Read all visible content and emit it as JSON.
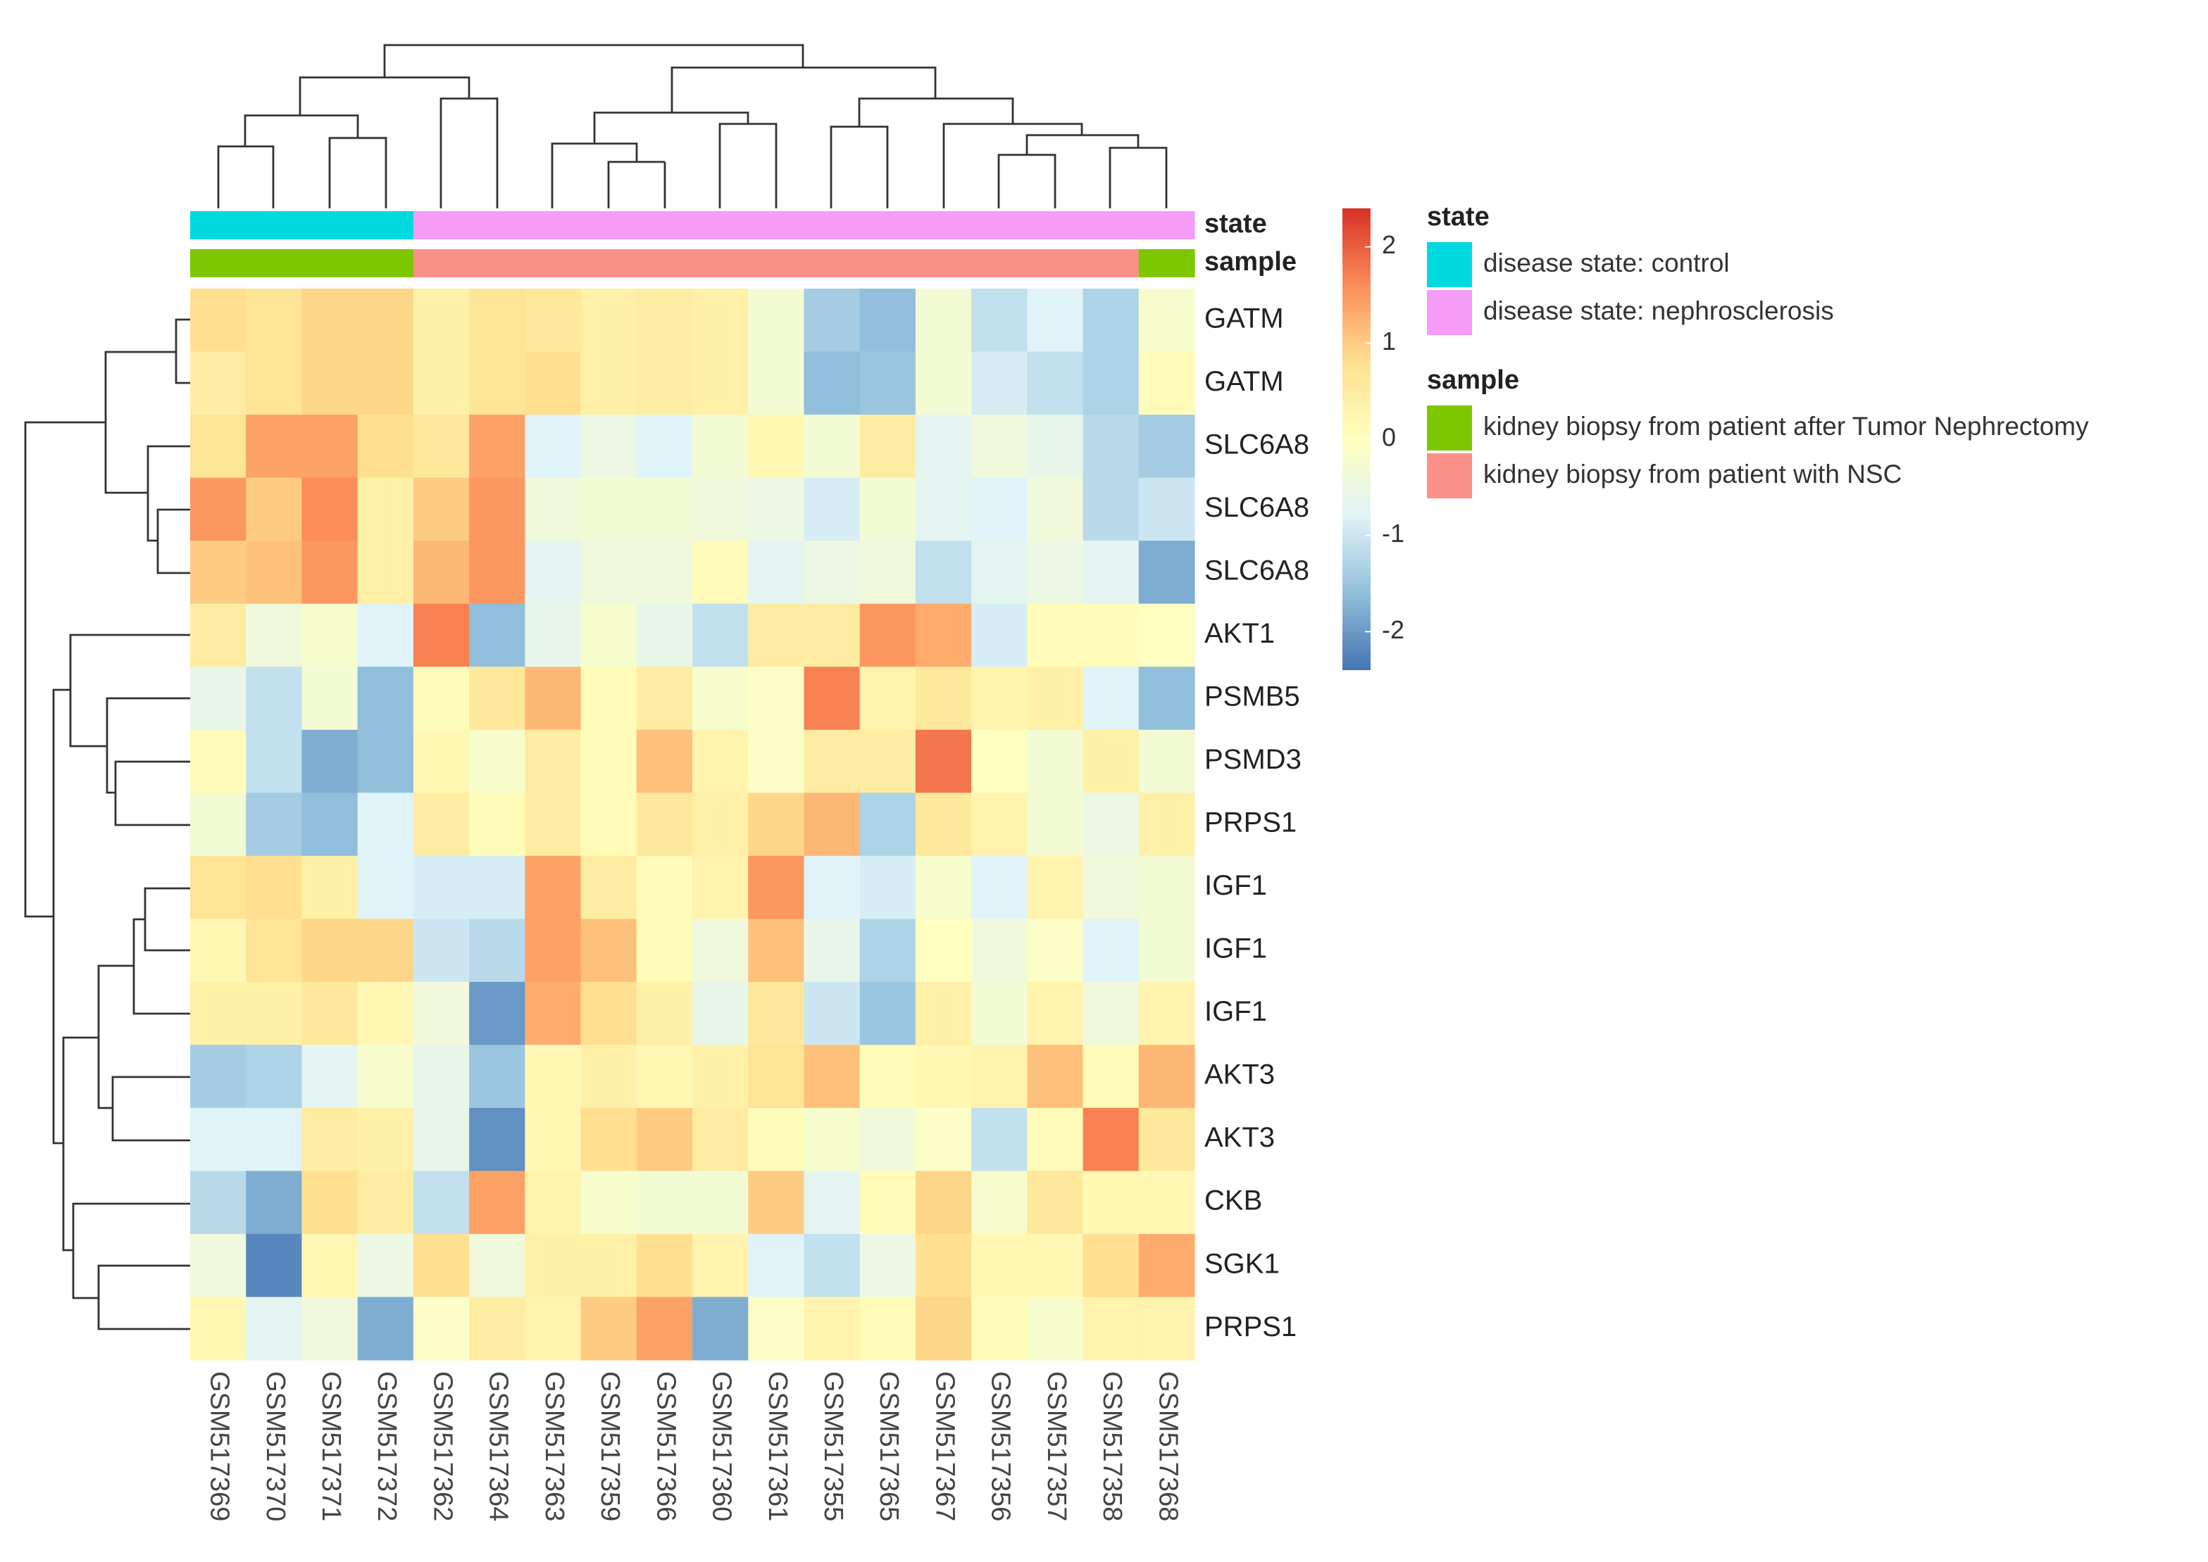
{
  "chart_data": {
    "type": "heatmap",
    "columns": [
      "GSM517369",
      "GSM517370",
      "GSM517371",
      "GSM517372",
      "GSM517362",
      "GSM517364",
      "GSM517363",
      "GSM517359",
      "GSM517366",
      "GSM517360",
      "GSM517361",
      "GSM517355",
      "GSM517365",
      "GSM517367",
      "GSM517356",
      "GSM517357",
      "GSM517358",
      "GSM517368"
    ],
    "rows": [
      "GATM",
      "GATM",
      "SLC6A8",
      "SLC6A8",
      "SLC6A8",
      "AKT1",
      "PSMB5",
      "PSMD3",
      "PRPS1",
      "IGF1",
      "IGF1",
      "IGF1",
      "AKT3",
      "AKT3",
      "CKB",
      "SGK1",
      "PRPS1"
    ],
    "values": [
      [
        0.8,
        0.7,
        0.9,
        0.9,
        0.4,
        0.7,
        0.6,
        0.4,
        0.5,
        0.4,
        -0.3,
        -1.4,
        -1.6,
        -0.3,
        -1.1,
        -0.8,
        -1.3,
        -0.2
      ],
      [
        0.5,
        0.7,
        0.9,
        0.9,
        0.4,
        0.7,
        0.8,
        0.4,
        0.5,
        0.4,
        -0.3,
        -1.6,
        -1.5,
        -0.3,
        -0.9,
        -1.1,
        -1.3,
        0.1
      ],
      [
        0.7,
        1.4,
        1.4,
        0.8,
        0.6,
        1.4,
        -0.8,
        -0.5,
        -0.8,
        -0.3,
        0.2,
        -0.3,
        0.5,
        -0.7,
        -0.4,
        -0.6,
        -1.2,
        -1.4
      ],
      [
        1.5,
        1.0,
        1.6,
        0.4,
        1.0,
        1.5,
        -0.4,
        -0.3,
        -0.3,
        -0.4,
        -0.5,
        -0.9,
        -0.3,
        -0.7,
        -0.8,
        -0.4,
        -1.2,
        -1.0
      ],
      [
        1.0,
        1.1,
        1.5,
        0.4,
        1.2,
        1.5,
        -0.7,
        -0.4,
        -0.4,
        0.1,
        -0.7,
        -0.5,
        -0.4,
        -1.1,
        -0.7,
        -0.5,
        -0.7,
        -1.8
      ],
      [
        0.5,
        -0.4,
        -0.2,
        -0.8,
        1.7,
        -1.6,
        -0.6,
        -0.2,
        -0.6,
        -1.1,
        0.5,
        0.5,
        1.5,
        1.3,
        -0.9,
        0.1,
        0.1,
        0.0
      ],
      [
        -0.6,
        -1.1,
        -0.3,
        -1.6,
        0.1,
        0.6,
        1.2,
        0.1,
        0.5,
        -0.2,
        -0.1,
        1.7,
        0.3,
        0.6,
        0.3,
        0.4,
        -0.8,
        -1.6
      ],
      [
        0.1,
        -1.1,
        -1.8,
        -1.6,
        0.2,
        -0.2,
        0.5,
        0.1,
        1.1,
        0.3,
        -0.1,
        0.5,
        0.5,
        1.8,
        0.0,
        -0.3,
        0.4,
        -0.3
      ],
      [
        -0.3,
        -1.4,
        -1.6,
        -0.8,
        0.5,
        0.1,
        0.5,
        0.1,
        0.6,
        0.4,
        0.9,
        1.2,
        -1.3,
        0.6,
        0.3,
        -0.3,
        -0.5,
        0.4
      ],
      [
        0.7,
        0.8,
        0.4,
        -0.8,
        -0.9,
        -0.9,
        1.4,
        0.5,
        0.1,
        0.3,
        1.5,
        -0.8,
        -0.9,
        -0.2,
        -0.8,
        0.3,
        -0.4,
        -0.3
      ],
      [
        0.2,
        0.7,
        0.9,
        0.9,
        -1.0,
        -1.2,
        1.4,
        1.1,
        0.1,
        -0.4,
        1.1,
        -0.6,
        -1.3,
        0.0,
        -0.4,
        -0.1,
        -0.8,
        -0.3
      ],
      [
        0.4,
        0.4,
        0.6,
        0.2,
        -0.4,
        -2.0,
        1.3,
        0.8,
        0.4,
        -0.6,
        0.6,
        -1.0,
        -1.5,
        0.4,
        -0.3,
        0.3,
        -0.4,
        0.3
      ],
      [
        -1.4,
        -1.3,
        -0.7,
        -0.2,
        -0.6,
        -1.5,
        0.2,
        0.4,
        0.2,
        0.4,
        0.7,
        1.1,
        0.1,
        0.2,
        0.3,
        1.1,
        0.1,
        1.2
      ],
      [
        -0.8,
        -0.8,
        0.5,
        0.4,
        -0.6,
        -2.1,
        0.2,
        0.8,
        1.0,
        0.5,
        0.1,
        -0.2,
        -0.4,
        -0.1,
        -1.1,
        0.1,
        1.7,
        0.6
      ],
      [
        -1.2,
        -1.8,
        0.8,
        0.5,
        -1.1,
        1.4,
        0.3,
        -0.2,
        -0.3,
        -0.3,
        1.0,
        -0.7,
        0.1,
        0.9,
        -0.2,
        0.6,
        0.2,
        0.2
      ],
      [
        -0.4,
        -2.2,
        0.2,
        -0.5,
        0.8,
        -0.4,
        0.4,
        0.4,
        0.8,
        0.3,
        -0.8,
        -1.1,
        -0.5,
        0.8,
        0.2,
        0.2,
        0.8,
        1.3
      ],
      [
        0.2,
        -0.7,
        -0.4,
        -1.8,
        -0.1,
        0.5,
        0.3,
        1.0,
        1.4,
        -1.8,
        -0.1,
        0.3,
        0.1,
        0.9,
        0.1,
        -0.2,
        0.3,
        0.3
      ]
    ],
    "zlim": [
      -2.4,
      2.4
    ],
    "zticks": [
      -2,
      -1,
      0,
      1,
      2
    ],
    "colors": [
      "#4575B4",
      "#91BFDB",
      "#E0F3F8",
      "#FFFFBF",
      "#FEE090",
      "#FC8D59",
      "#D73027"
    ],
    "annotations": [
      {
        "name": "state",
        "levels": [
          {
            "label": "disease state: control",
            "color": "#00D9DF"
          },
          {
            "label": "disease state: nephrosclerosis",
            "color": "#F49CF6"
          }
        ],
        "column_levels": [
          0,
          0,
          0,
          0,
          1,
          1,
          1,
          1,
          1,
          1,
          1,
          1,
          1,
          1,
          1,
          1,
          1,
          1
        ]
      },
      {
        "name": "sample",
        "levels": [
          {
            "label": "kidney biopsy from patient after Tumor Nephrectomy",
            "color": "#7CC700"
          },
          {
            "label": "kidney biopsy from patient with NSC",
            "color": "#FA9189"
          }
        ],
        "column_levels": [
          0,
          0,
          0,
          0,
          1,
          1,
          1,
          1,
          1,
          1,
          1,
          1,
          1,
          1,
          1,
          1,
          1,
          0
        ]
      }
    ]
  }
}
